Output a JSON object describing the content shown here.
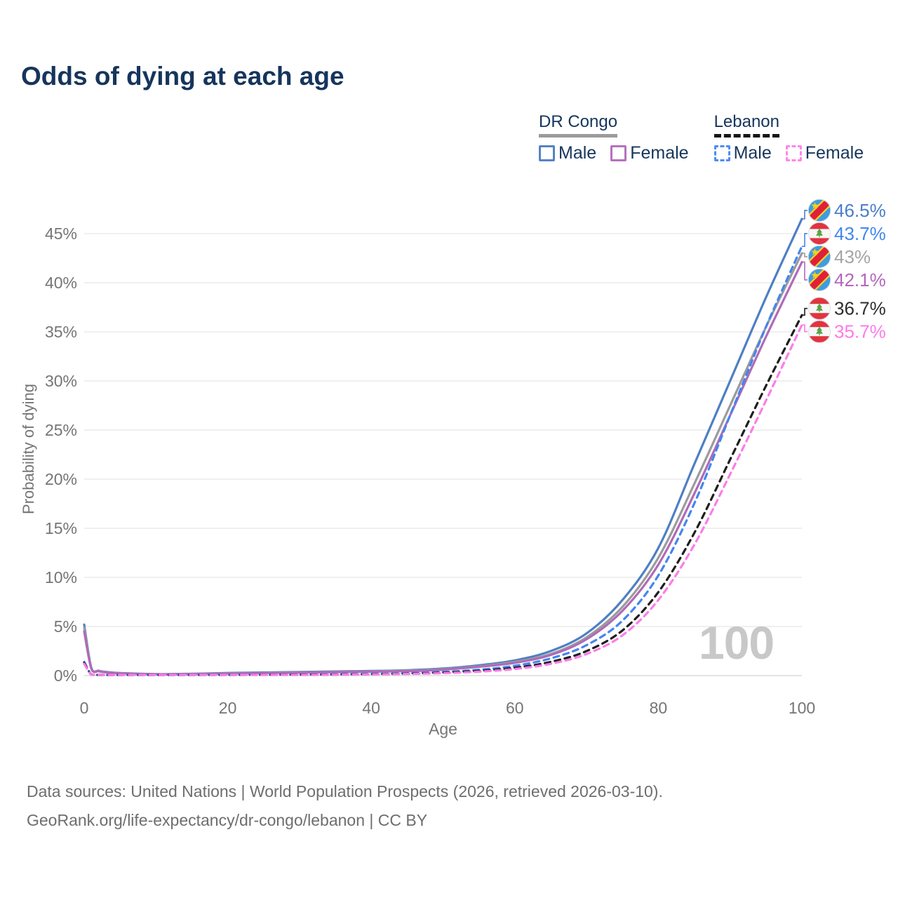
{
  "title": "Odds of dying at each age",
  "watermark_age": "100",
  "footer": {
    "line1": "Data sources: United Nations | World Population Prospects (2026, retrieved 2026-03-10).",
    "line2": "GeoRank.org/life-expectancy/dr-congo/lebanon | CC BY"
  },
  "legend": {
    "groups": [
      {
        "label": "DR Congo",
        "line_style": "solid",
        "underline_color": "#9b9b9b",
        "items": [
          {
            "label": "Male",
            "color": "#5583c6",
            "dash": false
          },
          {
            "label": "Female",
            "color": "#b671bd",
            "dash": false
          }
        ]
      },
      {
        "label": "Lebanon",
        "line_style": "dashed",
        "underline_color": "#151515",
        "items": [
          {
            "label": "Male",
            "color": "#4d8cf5",
            "dash": true
          },
          {
            "label": "Female",
            "color": "#ff86ea",
            "dash": true
          }
        ]
      }
    ]
  },
  "chart_data": {
    "type": "line",
    "title": "Odds of dying at each age",
    "xlabel": "Age",
    "ylabel": "Probability of dying",
    "x_ticks": [
      0,
      20,
      40,
      60,
      80,
      100
    ],
    "x_tick_labels": [
      "0",
      "20",
      "40",
      "60",
      "80",
      "100"
    ],
    "y_ticks_percent": [
      0,
      5,
      10,
      15,
      20,
      25,
      30,
      35,
      40,
      45
    ],
    "y_tick_labels": [
      "0%",
      "5%",
      "10%",
      "15%",
      "20%",
      "25%",
      "30%",
      "35%",
      "40%",
      "45%"
    ],
    "xlim": [
      0,
      100
    ],
    "ylim_percent": [
      0,
      47
    ],
    "grid": "horizontal-only",
    "legend_position": "top-right",
    "ages": [
      0,
      1,
      2,
      3,
      5,
      10,
      15,
      20,
      25,
      30,
      35,
      40,
      45,
      50,
      55,
      60,
      65,
      70,
      75,
      80,
      85,
      90,
      95,
      100
    ],
    "series": [
      {
        "name": "DR Congo Male",
        "country": "DR Congo",
        "group": "Male",
        "flag": "dr-congo",
        "color": "#4e7fc3",
        "dash": false,
        "values_percent": [
          5.2,
          0.8,
          0.5,
          0.38,
          0.26,
          0.15,
          0.19,
          0.27,
          0.32,
          0.37,
          0.42,
          0.47,
          0.55,
          0.72,
          1.05,
          1.55,
          2.5,
          4.3,
          7.7,
          13,
          21.5,
          30,
          38.5,
          46.5
        ],
        "end_value": 46.5,
        "end_label": "46.5%",
        "label_color": "#4a7ec9"
      },
      {
        "name": "Lebanon Male",
        "country": "Lebanon",
        "group": "Male",
        "flag": "lebanon",
        "color": "#4286f0",
        "dash": true,
        "values_percent": [
          1.4,
          0.1,
          0.07,
          0.055,
          0.04,
          0.04,
          0.06,
          0.09,
          0.1,
          0.11,
          0.13,
          0.17,
          0.24,
          0.37,
          0.6,
          1.0,
          1.75,
          3.1,
          5.6,
          10.2,
          17.5,
          26.5,
          35.5,
          43.7
        ],
        "end_value": 43.7,
        "end_label": "43.7%",
        "label_color": "#4286f0"
      },
      {
        "name": "DR Congo Total",
        "country": "DR Congo",
        "group": "Total",
        "flag": "dr-congo",
        "color": "#9b9b9b",
        "dash": false,
        "values_percent": [
          4.9,
          0.75,
          0.47,
          0.35,
          0.24,
          0.14,
          0.17,
          0.23,
          0.28,
          0.33,
          0.38,
          0.42,
          0.5,
          0.65,
          0.95,
          1.4,
          2.2,
          3.9,
          7.0,
          12,
          19.5,
          27.5,
          35.5,
          43
        ],
        "end_value": 43,
        "end_label": "43%",
        "label_color": "#a5a5a5"
      },
      {
        "name": "DR Congo Female",
        "country": "DR Congo",
        "group": "Female",
        "flag": "dr-congo",
        "color": "#b06ab8",
        "dash": false,
        "values_percent": [
          4.5,
          0.7,
          0.44,
          0.33,
          0.23,
          0.13,
          0.15,
          0.2,
          0.26,
          0.3,
          0.35,
          0.4,
          0.45,
          0.6,
          0.9,
          1.3,
          2.1,
          3.7,
          6.6,
          11.3,
          18.5,
          26.5,
          34.5,
          42.1
        ],
        "end_value": 42.1,
        "end_label": "42.1%",
        "label_color": "#b565be"
      },
      {
        "name": "Lebanon Total",
        "country": "Lebanon",
        "group": "Total",
        "flag": "lebanon",
        "color": "#1f1f1f",
        "dash": true,
        "values_percent": [
          1.3,
          0.09,
          0.065,
          0.05,
          0.035,
          0.035,
          0.05,
          0.07,
          0.08,
          0.09,
          0.11,
          0.14,
          0.2,
          0.3,
          0.48,
          0.8,
          1.4,
          2.5,
          4.6,
          8.5,
          14.5,
          22,
          29.5,
          36.7
        ],
        "end_value": 36.7,
        "end_label": "36.7%",
        "label_color": "#2d2d2d"
      },
      {
        "name": "Lebanon Female",
        "country": "Lebanon",
        "group": "Female",
        "flag": "lebanon",
        "color": "#fc7ce8",
        "dash": true,
        "values_percent": [
          1.2,
          0.08,
          0.06,
          0.045,
          0.03,
          0.03,
          0.04,
          0.05,
          0.06,
          0.07,
          0.09,
          0.12,
          0.17,
          0.25,
          0.4,
          0.67,
          1.2,
          2.2,
          4.1,
          7.7,
          13.3,
          20.5,
          28,
          35.7
        ],
        "end_value": 35.7,
        "end_label": "35.7%",
        "label_color": "#ff7ae8"
      }
    ]
  }
}
